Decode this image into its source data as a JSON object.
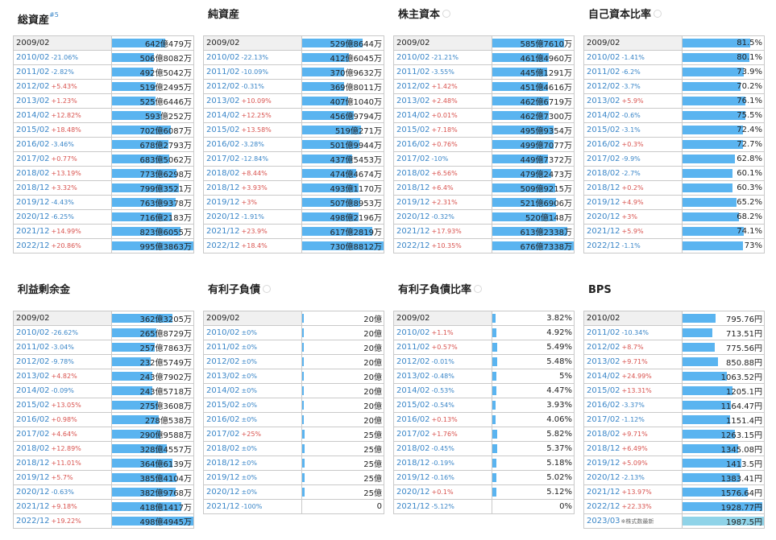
{
  "panels": [
    {
      "title": "総資産",
      "sup": "#5",
      "help": false,
      "max": 995.3863,
      "rows": [
        {
          "year": "2009/02",
          "chg": "",
          "dir": "",
          "value": "642億479万",
          "num": 642.0479
        },
        {
          "year": "2010/02",
          "chg": "-21.06%",
          "dir": "down",
          "value": "506億8082万",
          "num": 506.8082
        },
        {
          "year": "2011/02",
          "chg": "-2.82%",
          "dir": "down",
          "value": "492億5042万",
          "num": 492.5042
        },
        {
          "year": "2012/02",
          "chg": "+5.43%",
          "dir": "up",
          "value": "519億2495万",
          "num": 519.2495
        },
        {
          "year": "2013/02",
          "chg": "+1.23%",
          "dir": "up",
          "value": "525億6446万",
          "num": 525.6446
        },
        {
          "year": "2014/02",
          "chg": "+12.82%",
          "dir": "up",
          "value": "593億252万",
          "num": 593.0252
        },
        {
          "year": "2015/02",
          "chg": "+18.48%",
          "dir": "up",
          "value": "702億6087万",
          "num": 702.6087
        },
        {
          "year": "2016/02",
          "chg": "-3.46%",
          "dir": "down",
          "value": "678億2793万",
          "num": 678.2793
        },
        {
          "year": "2017/02",
          "chg": "+0.77%",
          "dir": "up",
          "value": "683億5062万",
          "num": 683.5062
        },
        {
          "year": "2018/02",
          "chg": "+13.19%",
          "dir": "up",
          "value": "773億6298万",
          "num": 773.6298
        },
        {
          "year": "2018/12",
          "chg": "+3.32%",
          "dir": "up",
          "value": "799億3521万",
          "num": 799.3521
        },
        {
          "year": "2019/12",
          "chg": "-4.43%",
          "dir": "down",
          "value": "763億9378万",
          "num": 763.9378
        },
        {
          "year": "2020/12",
          "chg": "-6.25%",
          "dir": "down",
          "value": "716億2183万",
          "num": 716.2183
        },
        {
          "year": "2021/12",
          "chg": "+14.99%",
          "dir": "up",
          "value": "823億6055万",
          "num": 823.6055
        },
        {
          "year": "2022/12",
          "chg": "+20.86%",
          "dir": "up",
          "value": "995億3863万",
          "num": 995.3863
        }
      ]
    },
    {
      "title": "純資産",
      "sup": "",
      "help": false,
      "max": 730.8812,
      "rows": [
        {
          "year": "2009/02",
          "chg": "",
          "dir": "",
          "value": "529億8644万",
          "num": 529.8644
        },
        {
          "year": "2010/02",
          "chg": "-22.13%",
          "dir": "down",
          "value": "412億6045万",
          "num": 412.6045
        },
        {
          "year": "2011/02",
          "chg": "-10.09%",
          "dir": "down",
          "value": "370億9632万",
          "num": 370.9632
        },
        {
          "year": "2012/02",
          "chg": "-0.31%",
          "dir": "down",
          "value": "369億8011万",
          "num": 369.8011
        },
        {
          "year": "2013/02",
          "chg": "+10.09%",
          "dir": "up",
          "value": "407億1040万",
          "num": 407.104
        },
        {
          "year": "2014/02",
          "chg": "+12.25%",
          "dir": "up",
          "value": "456億9794万",
          "num": 456.9794
        },
        {
          "year": "2015/02",
          "chg": "+13.58%",
          "dir": "up",
          "value": "519億271万",
          "num": 519.0271
        },
        {
          "year": "2016/02",
          "chg": "-3.28%",
          "dir": "down",
          "value": "501億9944万",
          "num": 501.9944
        },
        {
          "year": "2017/02",
          "chg": "-12.84%",
          "dir": "down",
          "value": "437億5453万",
          "num": 437.5453
        },
        {
          "year": "2018/02",
          "chg": "+8.44%",
          "dir": "up",
          "value": "474億4674万",
          "num": 474.4674
        },
        {
          "year": "2018/12",
          "chg": "+3.93%",
          "dir": "up",
          "value": "493億1170万",
          "num": 493.117
        },
        {
          "year": "2019/12",
          "chg": "+3%",
          "dir": "up",
          "value": "507億8953万",
          "num": 507.8953
        },
        {
          "year": "2020/12",
          "chg": "-1.91%",
          "dir": "down",
          "value": "498億2196万",
          "num": 498.2196
        },
        {
          "year": "2021/12",
          "chg": "+23.9%",
          "dir": "up",
          "value": "617億2819万",
          "num": 617.2819
        },
        {
          "year": "2022/12",
          "chg": "+18.4%",
          "dir": "up",
          "value": "730億8812万",
          "num": 730.8812
        }
      ]
    },
    {
      "title": "株主資本",
      "sup": "",
      "help": true,
      "max": 676.7338,
      "rows": [
        {
          "year": "2009/02",
          "chg": "",
          "dir": "",
          "value": "585億7610万",
          "num": 585.761
        },
        {
          "year": "2010/02",
          "chg": "-21.21%",
          "dir": "down",
          "value": "461億4960万",
          "num": 461.496
        },
        {
          "year": "2011/02",
          "chg": "-3.55%",
          "dir": "down",
          "value": "445億1291万",
          "num": 445.1291
        },
        {
          "year": "2012/02",
          "chg": "+1.42%",
          "dir": "up",
          "value": "451億4616万",
          "num": 451.4616
        },
        {
          "year": "2013/02",
          "chg": "+2.48%",
          "dir": "up",
          "value": "462億6719万",
          "num": 462.6719
        },
        {
          "year": "2014/02",
          "chg": "+0.01%",
          "dir": "up",
          "value": "462億7300万",
          "num": 462.73
        },
        {
          "year": "2015/02",
          "chg": "+7.18%",
          "dir": "up",
          "value": "495億9354万",
          "num": 495.9354
        },
        {
          "year": "2016/02",
          "chg": "+0.76%",
          "dir": "up",
          "value": "499億7077万",
          "num": 499.7077
        },
        {
          "year": "2017/02",
          "chg": "-10%",
          "dir": "down",
          "value": "449億7372万",
          "num": 449.7372
        },
        {
          "year": "2018/02",
          "chg": "+6.56%",
          "dir": "up",
          "value": "479億2473万",
          "num": 479.2473
        },
        {
          "year": "2018/12",
          "chg": "+6.4%",
          "dir": "up",
          "value": "509億9215万",
          "num": 509.9215
        },
        {
          "year": "2019/12",
          "chg": "+2.31%",
          "dir": "up",
          "value": "521億6906万",
          "num": 521.6906
        },
        {
          "year": "2020/12",
          "chg": "-0.32%",
          "dir": "down",
          "value": "520億148万",
          "num": 520.0148
        },
        {
          "year": "2021/12",
          "chg": "+17.93%",
          "dir": "up",
          "value": "613億2338万",
          "num": 613.2338
        },
        {
          "year": "2022/12",
          "chg": "+10.35%",
          "dir": "up",
          "value": "676億7338万",
          "num": 676.7338
        }
      ]
    },
    {
      "title": "自己資本比率",
      "sup": "",
      "help": true,
      "max": 100,
      "rows": [
        {
          "year": "2009/02",
          "chg": "",
          "dir": "",
          "value": "81.5%",
          "num": 81.5
        },
        {
          "year": "2010/02",
          "chg": "-1.41%",
          "dir": "down",
          "value": "80.1%",
          "num": 80.1
        },
        {
          "year": "2011/02",
          "chg": "-6.2%",
          "dir": "down",
          "value": "73.9%",
          "num": 73.9
        },
        {
          "year": "2012/02",
          "chg": "-3.7%",
          "dir": "down",
          "value": "70.2%",
          "num": 70.2
        },
        {
          "year": "2013/02",
          "chg": "+5.9%",
          "dir": "up",
          "value": "76.1%",
          "num": 76.1
        },
        {
          "year": "2014/02",
          "chg": "-0.6%",
          "dir": "down",
          "value": "75.5%",
          "num": 75.5
        },
        {
          "year": "2015/02",
          "chg": "-3.1%",
          "dir": "down",
          "value": "72.4%",
          "num": 72.4
        },
        {
          "year": "2016/02",
          "chg": "+0.3%",
          "dir": "up",
          "value": "72.7%",
          "num": 72.7
        },
        {
          "year": "2017/02",
          "chg": "-9.9%",
          "dir": "down",
          "value": "62.8%",
          "num": 62.8
        },
        {
          "year": "2018/02",
          "chg": "-2.7%",
          "dir": "down",
          "value": "60.1%",
          "num": 60.1
        },
        {
          "year": "2018/12",
          "chg": "+0.2%",
          "dir": "up",
          "value": "60.3%",
          "num": 60.3
        },
        {
          "year": "2019/12",
          "chg": "+4.9%",
          "dir": "up",
          "value": "65.2%",
          "num": 65.2
        },
        {
          "year": "2020/12",
          "chg": "+3%",
          "dir": "up",
          "value": "68.2%",
          "num": 68.2
        },
        {
          "year": "2021/12",
          "chg": "+5.9%",
          "dir": "up",
          "value": "74.1%",
          "num": 74.1
        },
        {
          "year": "2022/12",
          "chg": "-1.1%",
          "dir": "down",
          "value": "73%",
          "num": 73.0
        }
      ]
    },
    {
      "title": "利益剰余金",
      "sup": "",
      "help": false,
      "max": 498.4945,
      "rows": [
        {
          "year": "2009/02",
          "chg": "",
          "dir": "",
          "value": "362億3205万",
          "num": 362.3205
        },
        {
          "year": "2010/02",
          "chg": "-26.62%",
          "dir": "down",
          "value": "265億8729万",
          "num": 265.8729
        },
        {
          "year": "2011/02",
          "chg": "-3.04%",
          "dir": "down",
          "value": "257億7863万",
          "num": 257.7863
        },
        {
          "year": "2012/02",
          "chg": "-9.78%",
          "dir": "down",
          "value": "232億5749万",
          "num": 232.5749
        },
        {
          "year": "2013/02",
          "chg": "+4.82%",
          "dir": "up",
          "value": "243億7902万",
          "num": 243.7902
        },
        {
          "year": "2014/02",
          "chg": "-0.09%",
          "dir": "down",
          "value": "243億5718万",
          "num": 243.5718
        },
        {
          "year": "2015/02",
          "chg": "+13.05%",
          "dir": "up",
          "value": "275億3608万",
          "num": 275.3608
        },
        {
          "year": "2016/02",
          "chg": "+0.98%",
          "dir": "up",
          "value": "278億538万",
          "num": 278.0538
        },
        {
          "year": "2017/02",
          "chg": "+4.64%",
          "dir": "up",
          "value": "290億9588万",
          "num": 290.9588
        },
        {
          "year": "2018/02",
          "chg": "+12.89%",
          "dir": "up",
          "value": "328億4557万",
          "num": 328.4557
        },
        {
          "year": "2018/12",
          "chg": "+11.01%",
          "dir": "up",
          "value": "364億6139万",
          "num": 364.6139
        },
        {
          "year": "2019/12",
          "chg": "+5.7%",
          "dir": "up",
          "value": "385億4104万",
          "num": 385.4104
        },
        {
          "year": "2020/12",
          "chg": "-0.63%",
          "dir": "down",
          "value": "382億9768万",
          "num": 382.9768
        },
        {
          "year": "2021/12",
          "chg": "+9.18%",
          "dir": "up",
          "value": "418億1417万",
          "num": 418.1417
        },
        {
          "year": "2022/12",
          "chg": "+19.22%",
          "dir": "up",
          "value": "498億4945万",
          "num": 498.4945
        }
      ]
    },
    {
      "title": "有利子負債",
      "sup": "",
      "help": true,
      "max": 1000,
      "rows": [
        {
          "year": "2009/02",
          "chg": "",
          "dir": "",
          "value": "20億",
          "num": 20
        },
        {
          "year": "2010/02",
          "chg": "±0%",
          "dir": "zero",
          "value": "20億",
          "num": 20
        },
        {
          "year": "2011/02",
          "chg": "±0%",
          "dir": "zero",
          "value": "20億",
          "num": 20
        },
        {
          "year": "2012/02",
          "chg": "±0%",
          "dir": "zero",
          "value": "20億",
          "num": 20
        },
        {
          "year": "2013/02",
          "chg": "±0%",
          "dir": "zero",
          "value": "20億",
          "num": 20
        },
        {
          "year": "2014/02",
          "chg": "±0%",
          "dir": "zero",
          "value": "20億",
          "num": 20
        },
        {
          "year": "2015/02",
          "chg": "±0%",
          "dir": "zero",
          "value": "20億",
          "num": 20
        },
        {
          "year": "2016/02",
          "chg": "±0%",
          "dir": "zero",
          "value": "20億",
          "num": 20
        },
        {
          "year": "2017/02",
          "chg": "+25%",
          "dir": "up",
          "value": "25億",
          "num": 25
        },
        {
          "year": "2018/02",
          "chg": "±0%",
          "dir": "zero",
          "value": "25億",
          "num": 25
        },
        {
          "year": "2018/12",
          "chg": "±0%",
          "dir": "zero",
          "value": "25億",
          "num": 25
        },
        {
          "year": "2019/12",
          "chg": "±0%",
          "dir": "zero",
          "value": "25億",
          "num": 25
        },
        {
          "year": "2020/12",
          "chg": "±0%",
          "dir": "zero",
          "value": "25億",
          "num": 25
        },
        {
          "year": "2021/12",
          "chg": "-100%",
          "dir": "down",
          "value": "0",
          "num": 0
        }
      ]
    },
    {
      "title": "有利子負債比率",
      "sup": "",
      "help": true,
      "max": 100,
      "rows": [
        {
          "year": "2009/02",
          "chg": "",
          "dir": "",
          "value": "3.82%",
          "num": 3.82
        },
        {
          "year": "2010/02",
          "chg": "+1.1%",
          "dir": "up",
          "value": "4.92%",
          "num": 4.92
        },
        {
          "year": "2011/02",
          "chg": "+0.57%",
          "dir": "up",
          "value": "5.49%",
          "num": 5.49
        },
        {
          "year": "2012/02",
          "chg": "-0.01%",
          "dir": "down",
          "value": "5.48%",
          "num": 5.48
        },
        {
          "year": "2013/02",
          "chg": "-0.48%",
          "dir": "down",
          "value": "5%",
          "num": 5.0
        },
        {
          "year": "2014/02",
          "chg": "-0.53%",
          "dir": "down",
          "value": "4.47%",
          "num": 4.47
        },
        {
          "year": "2015/02",
          "chg": "-0.54%",
          "dir": "down",
          "value": "3.93%",
          "num": 3.93
        },
        {
          "year": "2016/02",
          "chg": "+0.13%",
          "dir": "up",
          "value": "4.06%",
          "num": 4.06
        },
        {
          "year": "2017/02",
          "chg": "+1.76%",
          "dir": "up",
          "value": "5.82%",
          "num": 5.82
        },
        {
          "year": "2018/02",
          "chg": "-0.45%",
          "dir": "down",
          "value": "5.37%",
          "num": 5.37
        },
        {
          "year": "2018/12",
          "chg": "-0.19%",
          "dir": "down",
          "value": "5.18%",
          "num": 5.18
        },
        {
          "year": "2019/12",
          "chg": "-0.16%",
          "dir": "down",
          "value": "5.02%",
          "num": 5.02
        },
        {
          "year": "2020/12",
          "chg": "+0.1%",
          "dir": "up",
          "value": "5.12%",
          "num": 5.12
        },
        {
          "year": "2021/12",
          "chg": "-5.12%",
          "dir": "down",
          "value": "0%",
          "num": 0
        }
      ]
    },
    {
      "title": "BPS",
      "sup": "",
      "help": false,
      "max": 2000,
      "rows": [
        {
          "year": "2010/02",
          "chg": "",
          "dir": "",
          "value": "795.76円",
          "num": 795.76
        },
        {
          "year": "2011/02",
          "chg": "-10.34%",
          "dir": "down",
          "value": "713.51円",
          "num": 713.51
        },
        {
          "year": "2012/02",
          "chg": "+8.7%",
          "dir": "up",
          "value": "775.56円",
          "num": 775.56
        },
        {
          "year": "2013/02",
          "chg": "+9.71%",
          "dir": "up",
          "value": "850.88円",
          "num": 850.88
        },
        {
          "year": "2014/02",
          "chg": "+24.99%",
          "dir": "up",
          "value": "1063.52円",
          "num": 1063.52
        },
        {
          "year": "2015/02",
          "chg": "+13.31%",
          "dir": "up",
          "value": "1205.1円",
          "num": 1205.1
        },
        {
          "year": "2016/02",
          "chg": "-3.37%",
          "dir": "down",
          "value": "1164.47円",
          "num": 1164.47
        },
        {
          "year": "2017/02",
          "chg": "-1.12%",
          "dir": "down",
          "value": "1151.4円",
          "num": 1151.4
        },
        {
          "year": "2018/02",
          "chg": "+9.71%",
          "dir": "up",
          "value": "1263.15円",
          "num": 1263.15
        },
        {
          "year": "2018/12",
          "chg": "+6.49%",
          "dir": "up",
          "value": "1345.08円",
          "num": 1345.08
        },
        {
          "year": "2019/12",
          "chg": "+5.09%",
          "dir": "up",
          "value": "1413.5円",
          "num": 1413.5
        },
        {
          "year": "2020/12",
          "chg": "-2.13%",
          "dir": "down",
          "value": "1383.41円",
          "num": 1383.41
        },
        {
          "year": "2021/12",
          "chg": "+13.97%",
          "dir": "up",
          "value": "1576.64円",
          "num": 1576.64
        },
        {
          "year": "2022/12",
          "chg": "+22.33%",
          "dir": "up",
          "value": "1928.77円",
          "num": 1928.77
        },
        {
          "year": "2023/03",
          "chg": "",
          "dir": "",
          "note": "※株式数最新",
          "value": "1987.5円",
          "num": 1987.5
        }
      ]
    }
  ]
}
